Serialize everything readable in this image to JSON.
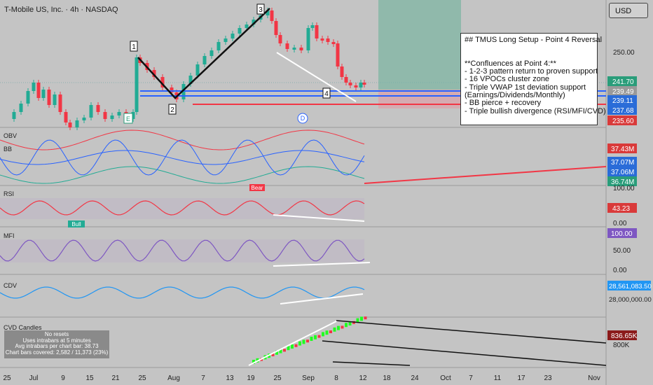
{
  "header": {
    "title": "T-Mobile US, Inc. · 4h · NASDAQ",
    "currency": "USD"
  },
  "note": {
    "lines": [
      "## TMUS Long Setup - Point 4 Reversal",
      "",
      "",
      "**Confluences at Point 4:**",
      "- 1-2-3 pattern return to proven support",
      "- 16 VPOCs cluster zone",
      "- Triple VWAP 1st deviation support",
      "(Earnings/Dividends/Monthly)",
      "- BB pierce + recovery",
      "- Triple bullish divergence (RSI/MFI/CVD)"
    ],
    "inline_badge": "E"
  },
  "panes": {
    "obv_label": "OBV",
    "bb_label": "BB",
    "rsi_label": "RSI",
    "mfi_label": "MFI",
    "cdv_label": "CDV",
    "cvd_label": "CVD Candles"
  },
  "info_box": {
    "lines": [
      "No resets",
      "Uses intrabars at 5 minutes",
      "Avg intrabars per chart bar: 38.73",
      "Chart bars covered: 2,582 / 11,373 (23%)"
    ]
  },
  "markers": {
    "points": [
      "1",
      "2",
      "3",
      "4"
    ],
    "earnings": "E",
    "dividend": "D",
    "bull": "Bull",
    "bear": "Bear"
  },
  "price_axis": {
    "ticks": [
      "250.00"
    ],
    "badges": [
      {
        "text": "241.70",
        "bg": "#2a9d7a"
      },
      {
        "text": "239.49",
        "bg": "#9a9a9a"
      },
      {
        "text": "239.11",
        "bg": "#2a6cd8"
      },
      {
        "text": "237.68",
        "bg": "#2a6cd8"
      },
      {
        "text": "235.60",
        "bg": "#d93a3a"
      }
    ]
  },
  "obv_axis": {
    "badges": [
      {
        "text": "37.43M",
        "bg": "#d93a3a"
      },
      {
        "text": "37.07M",
        "bg": "#2a6cd8"
      },
      {
        "text": "37.06M",
        "bg": "#2a6cd8"
      },
      {
        "text": "36.74M",
        "bg": "#2a9d7a"
      }
    ]
  },
  "rsi_axis": {
    "ticks": [
      "100.00",
      "0.00"
    ],
    "badge": {
      "text": "43.23",
      "bg": "#d93a3a"
    }
  },
  "mfi_axis": {
    "ticks": [
      "50.00",
      "0.00"
    ],
    "badge": {
      "text": "100.00",
      "bg": "#7e57c2"
    }
  },
  "cdv_axis": {
    "ticks": [
      "28,000,000.00"
    ],
    "badge": {
      "text": "28,561,083.50",
      "bg": "#2196f3"
    }
  },
  "cvd_axis": {
    "ticks": [
      "800K"
    ],
    "badge": {
      "text": "836.65K",
      "bg": "#8b1a1a"
    }
  },
  "time_axis": {
    "labels": [
      "25",
      "Jul",
      "9",
      "15",
      "21",
      "25",
      "Aug",
      "7",
      "13",
      "19",
      "25",
      "Sep",
      "8",
      "12",
      "18",
      "24",
      "Oct",
      "7",
      "11",
      "17",
      "23",
      "Nov"
    ]
  },
  "colors": {
    "up": "#22ab94",
    "down": "#f23645",
    "sr_blue": "#2962ff",
    "sr_red": "#f23645",
    "teal_zone": "#7fb5a3",
    "red_zone": "#d9a5ad"
  },
  "chart_data": {
    "type": "candlestick",
    "title": "T-Mobile US, Inc. · 4h · NASDAQ",
    "price_levels": {
      "support_blue": [
        239.49,
        239.11,
        237.68
      ],
      "support_red": 235.6,
      "last": 241.7
    },
    "pattern_points": [
      "1",
      "2",
      "3",
      "4"
    ],
    "indicators": [
      "OBV",
      "BB",
      "RSI",
      "MFI",
      "CDV",
      "CVD Candles"
    ]
  }
}
